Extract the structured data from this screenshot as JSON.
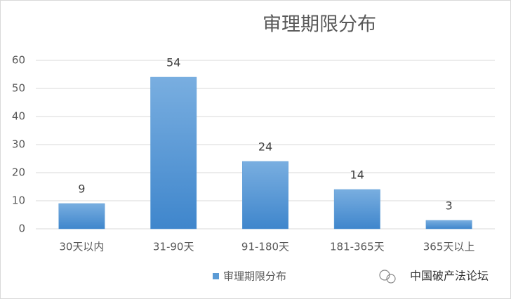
{
  "chart_data": {
    "type": "bar",
    "title": "审理期限分布",
    "categories": [
      "30天以内",
      "31-90天",
      "91-180天",
      "181-365天",
      "365天以上"
    ],
    "series": [
      {
        "name": "审理期限分布",
        "color": "#5b9bd5",
        "values": [
          9,
          54,
          24,
          14,
          3
        ]
      }
    ],
    "ylim": [
      0,
      60
    ],
    "yticks": [
      0,
      10,
      20,
      30,
      40,
      50,
      60
    ],
    "grid": true,
    "legend": "bottom",
    "watermark": "中国破产法论坛"
  }
}
